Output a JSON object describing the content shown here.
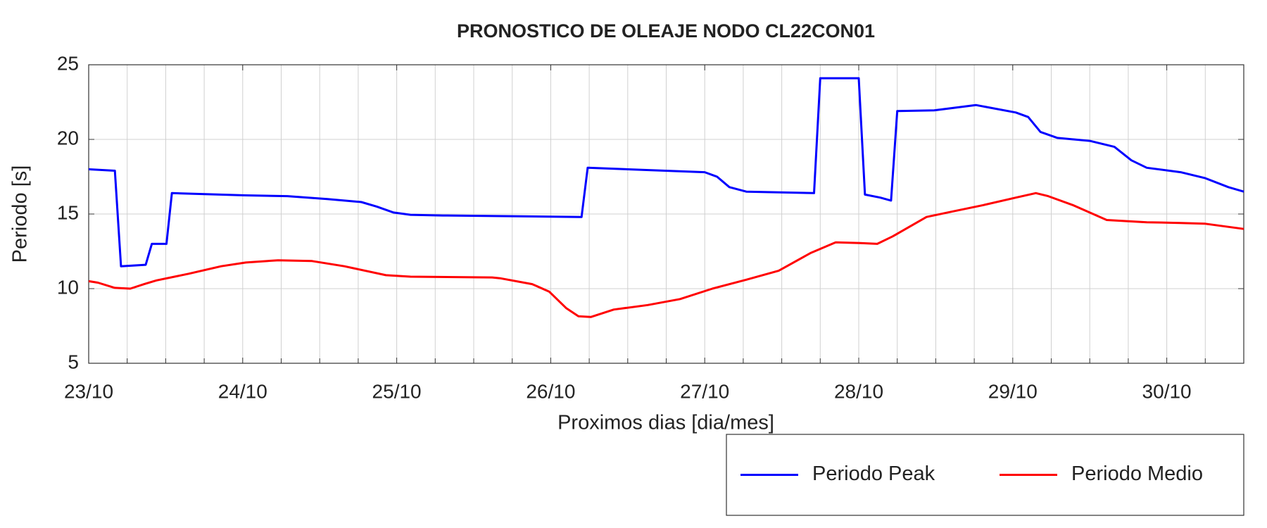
{
  "chart_data": {
    "type": "line",
    "title": "PRONOSTICO DE OLEAJE NODO CL22CON01",
    "x_label": "Proximos dias [dia/mes]",
    "y_label": "Periodo [s]",
    "xlim": [
      0,
      7.5
    ],
    "xticks": [
      {
        "value": 0,
        "label": "23/10"
      },
      {
        "value": 1,
        "label": "24/10"
      },
      {
        "value": 2,
        "label": "25/10"
      },
      {
        "value": 3,
        "label": "26/10"
      },
      {
        "value": 4,
        "label": "27/10"
      },
      {
        "value": 5,
        "label": "28/10"
      },
      {
        "value": 6,
        "label": "29/10"
      },
      {
        "value": 7,
        "label": "30/10"
      }
    ],
    "x_minor_ticks": [
      0.25,
      0.5,
      0.75,
      1.25,
      1.5,
      1.75,
      2.25,
      2.5,
      2.75,
      3.25,
      3.5,
      3.75,
      4.25,
      4.5,
      4.75,
      5.25,
      5.5,
      5.75,
      6.25,
      6.5,
      6.75,
      7.25,
      7.5
    ],
    "ylim": [
      5,
      25
    ],
    "yticks": [
      5,
      10,
      15,
      20,
      25
    ],
    "grid": true,
    "legend_position": "bottom-right",
    "series": [
      {
        "name": "Periodo Peak",
        "color": "#0000ff",
        "x": [
          0,
          0.17,
          0.21,
          0.37,
          0.41,
          0.505,
          0.54,
          1.02,
          1.29,
          1.55,
          1.77,
          1.87,
          1.98,
          2.09,
          2.3,
          3.2,
          3.24,
          4.0,
          4.08,
          4.16,
          4.27,
          4.71,
          4.75,
          5.0,
          5.04,
          5.14,
          5.21,
          5.25,
          5.49,
          5.76,
          6.02,
          6.1,
          6.18,
          6.29,
          6.5,
          6.66,
          6.77,
          6.87,
          7.09,
          7.25,
          7.4,
          7.5
        ],
        "values": [
          18.0,
          17.9,
          11.5,
          11.6,
          13.0,
          13.0,
          16.4,
          16.25,
          16.2,
          16.0,
          15.8,
          15.5,
          15.1,
          14.95,
          14.9,
          14.8,
          18.1,
          17.8,
          17.5,
          16.8,
          16.5,
          16.4,
          24.1,
          24.1,
          16.3,
          16.1,
          15.9,
          21.9,
          21.95,
          22.3,
          21.8,
          21.5,
          20.5,
          20.1,
          19.9,
          19.5,
          18.6,
          18.1,
          17.8,
          17.4,
          16.8,
          16.5
        ]
      },
      {
        "name": "Periodo Medio",
        "color": "#ff0000",
        "x": [
          0,
          0.06,
          0.17,
          0.27,
          0.36,
          0.44,
          0.65,
          0.86,
          1.02,
          1.23,
          1.45,
          1.66,
          1.93,
          2.09,
          2.62,
          2.67,
          2.88,
          2.99,
          3.1,
          3.18,
          3.26,
          3.41,
          3.63,
          3.84,
          4.05,
          4.27,
          4.48,
          4.69,
          4.85,
          5.01,
          5.12,
          5.22,
          5.44,
          5.6,
          5.81,
          6.02,
          6.15,
          6.23,
          6.39,
          6.61,
          6.87,
          7.09,
          7.25,
          7.5
        ],
        "values": [
          10.5,
          10.4,
          10.05,
          10.0,
          10.3,
          10.55,
          11.0,
          11.5,
          11.75,
          11.9,
          11.85,
          11.5,
          10.9,
          10.8,
          10.75,
          10.7,
          10.3,
          9.8,
          8.7,
          8.15,
          8.1,
          8.6,
          8.9,
          9.3,
          10.0,
          10.6,
          11.2,
          12.4,
          13.1,
          13.05,
          13.0,
          13.5,
          14.8,
          15.15,
          15.6,
          16.1,
          16.4,
          16.2,
          15.6,
          14.6,
          14.45,
          14.4,
          14.35,
          14.0
        ]
      }
    ]
  }
}
